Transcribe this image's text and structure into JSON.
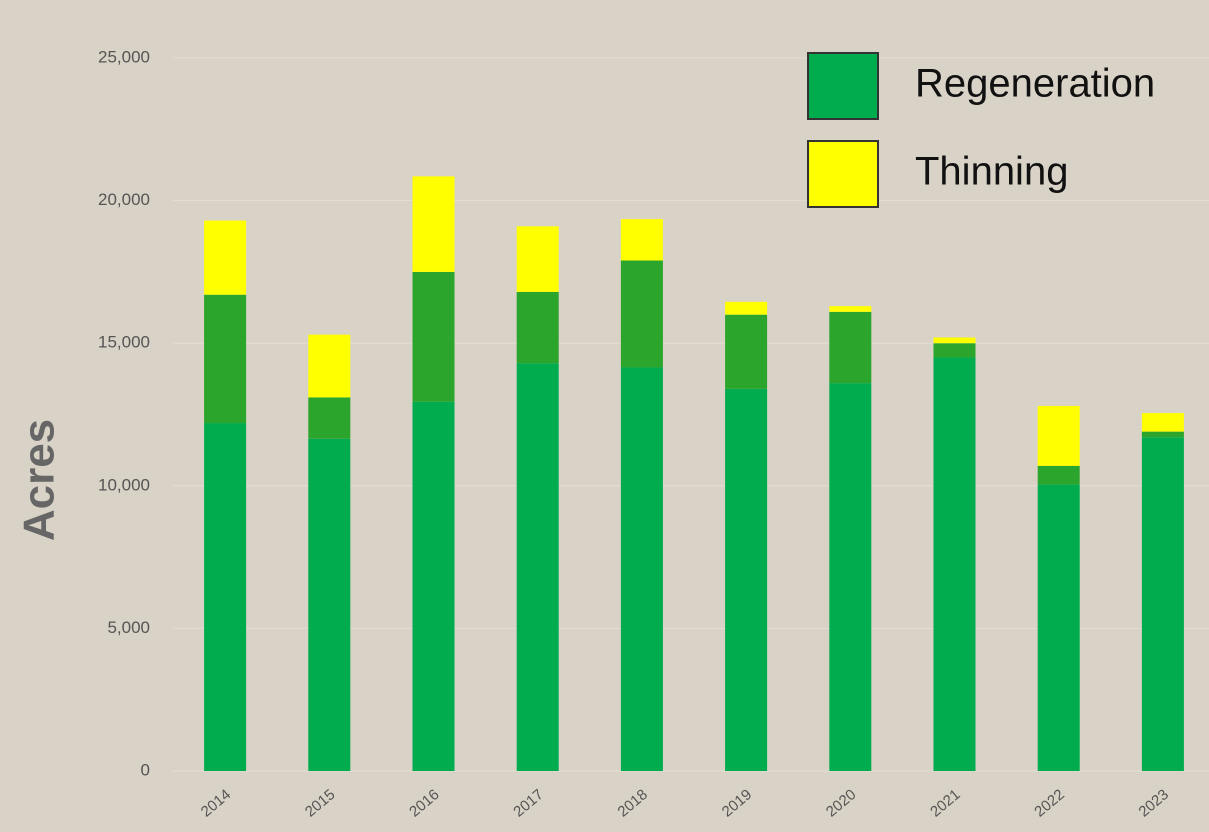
{
  "chart_data": {
    "type": "stacked_bar",
    "y_label": "Acres",
    "categories": [
      "2014",
      "2015",
      "2016",
      "2017",
      "2018",
      "2019",
      "2020",
      "2021",
      "2022",
      "2023"
    ],
    "series": [
      {
        "name": "Regeneration",
        "color": "#00ac4e",
        "values": [
          12200,
          11650,
          12950,
          14300,
          14150,
          13400,
          13600,
          14500,
          10050,
          11700
        ]
      },
      {
        "color": "#2ca52c",
        "values": [
          4500,
          1450,
          4550,
          2500,
          3750,
          2600,
          2500,
          500,
          650,
          200
        ]
      },
      {
        "name": "Thinning",
        "color": "#ffff00",
        "values": [
          2600,
          2200,
          3350,
          2300,
          1450,
          450,
          200,
          200,
          2100,
          650
        ]
      }
    ],
    "ylim": [
      0,
      25000
    ],
    "yticks": [
      0,
      {
        "value": 5000,
        "label": "5,000"
      },
      {
        "value": 10000,
        "label": "10,000"
      },
      {
        "value": 15000,
        "label": "15,000"
      },
      {
        "value": 20000,
        "label": "20,000"
      },
      {
        "value": 25000,
        "label": "25,000"
      }
    ],
    "grid": true
  }
}
